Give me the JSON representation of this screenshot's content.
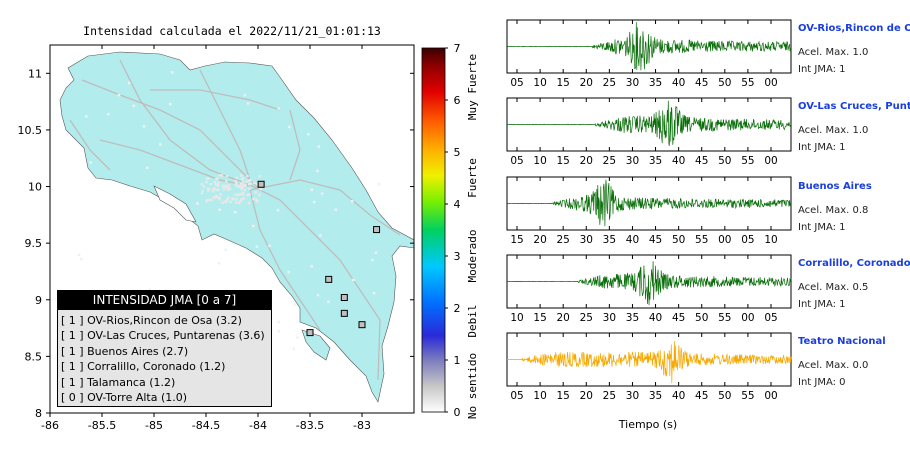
{
  "chart_data": [
    {
      "type": "map",
      "title": "Intensidad calculada el 2022/11/21_01:01:13",
      "xlim": [
        -86,
        -82.5
      ],
      "ylim": [
        8,
        11.25
      ],
      "x_ticks": [
        "-86",
        "-85.5",
        "-85",
        "-84.5",
        "-84",
        "-83.5",
        "-83"
      ],
      "y_ticks": [
        "8",
        "8.5",
        "9",
        "9.5",
        "10",
        "10.5",
        "11"
      ],
      "colorbar": {
        "range": [
          0,
          7
        ],
        "ticks": [
          "0",
          "1",
          "2",
          "3",
          "4",
          "5",
          "6",
          "7"
        ],
        "labels": [
          "No sentido",
          "Debil",
          "Moderado",
          "Fuerte",
          "Muy Fuerte"
        ]
      },
      "stations": [
        {
          "lon": -83.97,
          "lat": 10.02
        },
        {
          "lon": -82.86,
          "lat": 9.62
        },
        {
          "lon": -83.32,
          "lat": 9.18
        },
        {
          "lon": -83.17,
          "lat": 9.02
        },
        {
          "lon": -83.17,
          "lat": 8.88
        },
        {
          "lon": -83.0,
          "lat": 8.78
        },
        {
          "lon": -83.5,
          "lat": 8.71
        }
      ],
      "legend": {
        "title": "INTENSIDAD JMA [0 a 7]",
        "items": [
          "[ 1 ]  OV-Rios,Rincon de Osa (3.2)",
          "[ 1 ]  OV-Las Cruces, Puntarenas (3.6)",
          "[ 1 ]  Buenos Aires (2.7)",
          "[ 1 ]  Corralillo, Coronado (1.2)",
          "[ 1 ]  Talamanca (1.2)",
          "[ 0 ]  OV-Torre Alta (1.0)"
        ]
      }
    },
    {
      "type": "line",
      "xlabel": "Tiempo (s)",
      "traces": [
        {
          "station": "OV-Rios,Rincon de Osa",
          "acc": "Acel. Max. 1.0",
          "int": "Int JMA: 1",
          "color": "#0a6e0a",
          "ticks": [
            "05",
            "10",
            "15",
            "20",
            "25",
            "30",
            "35",
            "40",
            "45",
            "50",
            "55",
            "00"
          ],
          "onset": 0.3,
          "peak": 0.47,
          "amp": 1.0
        },
        {
          "station": "OV-Las Cruces, Puntarenas",
          "acc": "Acel. Max. 1.0",
          "int": "Int JMA: 1",
          "color": "#0a6e0a",
          "ticks": [
            "05",
            "10",
            "15",
            "20",
            "25",
            "30",
            "35",
            "40",
            "45",
            "50",
            "55",
            "00"
          ],
          "onset": 0.31,
          "peak": 0.57,
          "amp": 1.0
        },
        {
          "station": "Buenos Aires",
          "acc": "Acel. Max. 0.8",
          "int": "Int JMA: 1",
          "color": "#0a6e0a",
          "ticks": [
            "15",
            "20",
            "25",
            "30",
            "35",
            "40",
            "45",
            "50",
            "55",
            "00",
            "05",
            "10"
          ],
          "onset": 0.16,
          "peak": 0.34,
          "amp": 0.9
        },
        {
          "station": "Corralillo, Coronado",
          "acc": "Acel. Max. 0.5",
          "int": "Int JMA: 1",
          "color": "#0a6e0a",
          "ticks": [
            "10",
            "15",
            "20",
            "25",
            "30",
            "35",
            "40",
            "45",
            "50",
            "55",
            "00",
            "05"
          ],
          "onset": 0.25,
          "peak": 0.5,
          "amp": 0.9
        },
        {
          "station": "Teatro Nacional",
          "acc": "Acel. Max. 0.0",
          "int": "Int JMA: 0",
          "color": "#f5a800",
          "ticks": [
            "05",
            "10",
            "15",
            "20",
            "25",
            "30",
            "35",
            "40",
            "45",
            "50",
            "55",
            "00"
          ],
          "onset": 0.05,
          "peak": 0.58,
          "amp": 0.85
        }
      ]
    }
  ]
}
